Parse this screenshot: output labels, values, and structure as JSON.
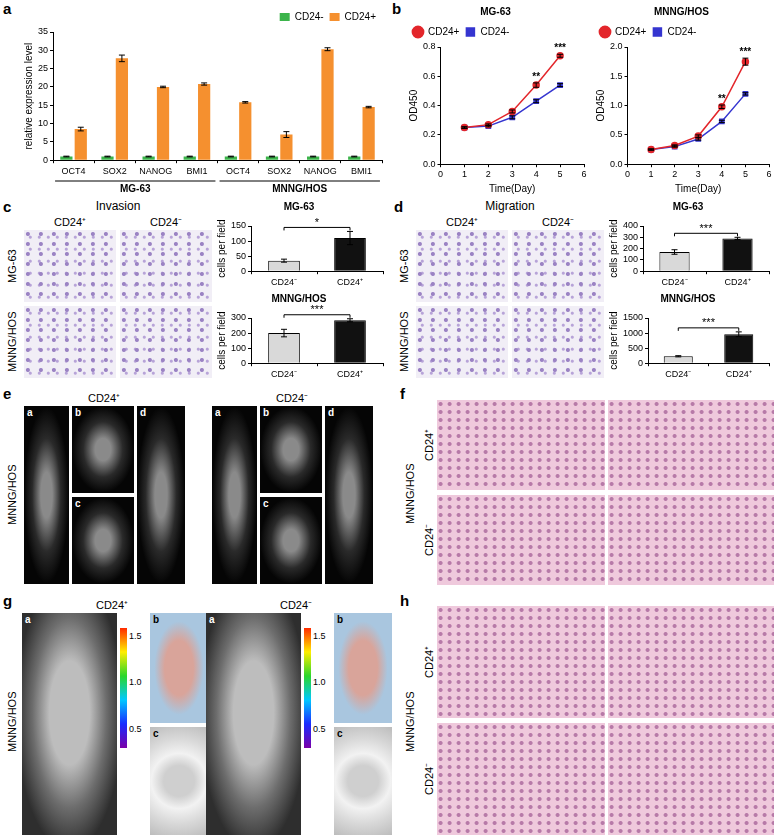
{
  "chart_data": [
    {
      "type": "bar",
      "ylabel": "relative expression level",
      "groups": [
        {
          "name": "MG-63",
          "categories": [
            "OCT4",
            "SOX2",
            "NANOG",
            "BMI1"
          ]
        },
        {
          "name": "MNNG/HOS",
          "categories": [
            "OCT4",
            "SOX2",
            "NANOG",
            "BMI1"
          ]
        }
      ],
      "series": [
        {
          "name": "CD24-",
          "color": "#3cb44b",
          "values": [
            1,
            1,
            1,
            1,
            1,
            1,
            1,
            1
          ],
          "errors": [
            0.1,
            0.1,
            0.1,
            0.1,
            0.1,
            0.1,
            0.1,
            0.1
          ]
        },
        {
          "name": "CD24+",
          "color": "#f5902f",
          "values": [
            8.5,
            27.8,
            20,
            20.8,
            15.8,
            7,
            30.3,
            14.5
          ],
          "errors": [
            0.5,
            0.9,
            0.2,
            0.3,
            0.2,
            0.8,
            0.4,
            0.2
          ]
        }
      ],
      "ylim": [
        0,
        35
      ],
      "yticks": [
        0,
        5,
        10,
        15,
        20,
        25,
        30,
        35
      ],
      "grid": false,
      "legend": "top-right"
    },
    {
      "type": "line",
      "title": "MG-63",
      "xlabel": "Time(Day)",
      "ylabel": "OD450",
      "x": [
        1,
        2,
        3,
        4,
        5
      ],
      "series": [
        {
          "name": "CD24+",
          "color": "#e3262b",
          "marker": "circle",
          "values": [
            0.25,
            0.27,
            0.36,
            0.54,
            0.74
          ],
          "errors": [
            0.005,
            0.005,
            0.01,
            0.015,
            0.01
          ]
        },
        {
          "name": "CD24-",
          "color": "#3535d0",
          "marker": "square",
          "values": [
            0.25,
            0.26,
            0.32,
            0.43,
            0.54
          ],
          "errors": [
            0.005,
            0.005,
            0.01,
            0.01,
            0.01
          ]
        }
      ],
      "xlim": [
        0,
        6
      ],
      "xticks": [
        0,
        1,
        2,
        3,
        4,
        5,
        6
      ],
      "ylim": [
        0,
        0.8
      ],
      "yticks": [
        {
          "value": 0,
          "label": "0.0"
        },
        0.2,
        0.4,
        0.6,
        0.8
      ],
      "grid": false,
      "legend": "top-left",
      "annotations": [
        {
          "x": 4,
          "text": "**"
        },
        {
          "x": 5,
          "text": "***"
        }
      ]
    },
    {
      "type": "line",
      "title": "MNNG/HOS",
      "xlabel": "Time(Day)",
      "ylabel": "OD450",
      "x": [
        1,
        2,
        3,
        4,
        5
      ],
      "series": [
        {
          "name": "CD24+",
          "color": "#e3262b",
          "marker": "circle",
          "values": [
            0.25,
            0.32,
            0.48,
            0.98,
            1.75
          ],
          "errors": [
            0.01,
            0.01,
            0.02,
            0.03,
            0.06
          ]
        },
        {
          "name": "CD24-",
          "color": "#3535d0",
          "marker": "square",
          "values": [
            0.25,
            0.3,
            0.43,
            0.73,
            1.2
          ],
          "errors": [
            0.01,
            0.01,
            0.02,
            0.02,
            0.02
          ]
        }
      ],
      "xlim": [
        0,
        6
      ],
      "xticks": [
        0,
        1,
        2,
        3,
        4,
        5,
        6
      ],
      "ylim": [
        0,
        2
      ],
      "yticks": [
        {
          "value": 0,
          "label": "0.0"
        },
        0.5,
        {
          "value": 1,
          "label": "1.0"
        },
        1.5,
        {
          "value": 2,
          "label": "2.0"
        }
      ],
      "grid": false,
      "legend": "top-left",
      "annotations": [
        {
          "x": 4,
          "text": "**"
        },
        {
          "x": 5,
          "text": "***"
        }
      ]
    },
    {
      "type": "bar",
      "title": "MG-63",
      "ylabel": "cells per field",
      "categories": [
        "CD24⁻",
        "CD24⁺"
      ],
      "values": [
        35,
        110
      ],
      "errors": [
        5,
        22
      ],
      "colors": [
        "#d9d9d9",
        "#111111"
      ],
      "ylim": [
        0,
        150
      ],
      "yticks": [
        0,
        50,
        100,
        150
      ],
      "grid": false,
      "annotations": [
        {
          "text": "*",
          "from": "CD24⁻",
          "to": "CD24⁺"
        }
      ]
    },
    {
      "type": "bar",
      "title": "MNNG/HOS",
      "ylabel": "cells per field",
      "categories": [
        "CD24⁻",
        "CD24⁺"
      ],
      "values": [
        200,
        285
      ],
      "errors": [
        25,
        10
      ],
      "colors": [
        "#d9d9d9",
        "#111111"
      ],
      "ylim": [
        0,
        300
      ],
      "yticks": [
        0,
        100,
        200,
        300
      ],
      "grid": false,
      "annotations": [
        {
          "text": "***",
          "from": "CD24⁻",
          "to": "CD24⁺"
        }
      ]
    },
    {
      "type": "bar",
      "title": "MG-63",
      "ylabel": "cells per field",
      "categories": [
        "CD24⁻",
        "CD24⁺"
      ],
      "values": [
        170,
        290
      ],
      "errors": [
        20,
        10
      ],
      "colors": [
        "#d9d9d9",
        "#111111"
      ],
      "ylim": [
        0,
        400
      ],
      "yticks": [
        0,
        100,
        200,
        300,
        400
      ],
      "grid": false,
      "annotations": [
        {
          "text": "***",
          "from": "CD24⁻",
          "to": "CD24⁺"
        }
      ]
    },
    {
      "type": "bar",
      "title": "MNNG/HOS",
      "ylabel": "cells per field",
      "categories": [
        "CD24⁻",
        "CD24⁺"
      ],
      "values": [
        230,
        960
      ],
      "errors": [
        20,
        80
      ],
      "colors": [
        "#d9d9d9",
        "#111111"
      ],
      "ylim": [
        0,
        1500
      ],
      "yticks": [
        0,
        500,
        1000,
        1500
      ],
      "grid": false,
      "annotations": [
        {
          "text": "***",
          "from": "CD24⁻",
          "to": "CD24⁺"
        }
      ]
    }
  ],
  "panels": [
    {
      "letter": "a"
    },
    {
      "letter": "b"
    },
    {
      "letter": "c",
      "title": "Invasion",
      "columns": [
        "CD24⁺",
        "CD24⁻"
      ],
      "rows": [
        "MG-63",
        "MNNG/HOS"
      ]
    },
    {
      "letter": "d",
      "title": "Migration",
      "columns": [
        "CD24⁺",
        "CD24⁻"
      ],
      "rows": [
        "MG-63",
        "MNNG/HOS"
      ]
    },
    {
      "letter": "e",
      "row": "MNNG/HOS",
      "groups": [
        "CD24⁺",
        "CD24⁻"
      ],
      "subpanels": [
        "a",
        "b",
        "c",
        "d"
      ]
    },
    {
      "letter": "f",
      "row": "MNNG/HOS",
      "rows": [
        "CD24⁺",
        "CD24⁻"
      ]
    },
    {
      "letter": "g",
      "row": "MNNG/HOS",
      "groups": [
        "CD24⁺",
        "CD24⁻"
      ],
      "subpanels": [
        "a",
        "b",
        "c"
      ],
      "colorbar": {
        "range": [
          0.3,
          1.6
        ],
        "ticks": [
          1.5,
          {
            "value": 1,
            "label": "1.0"
          },
          0.5
        ]
      }
    },
    {
      "letter": "h",
      "row": "MNNG/HOS",
      "rows": [
        "CD24⁺",
        "CD24⁻"
      ]
    }
  ]
}
